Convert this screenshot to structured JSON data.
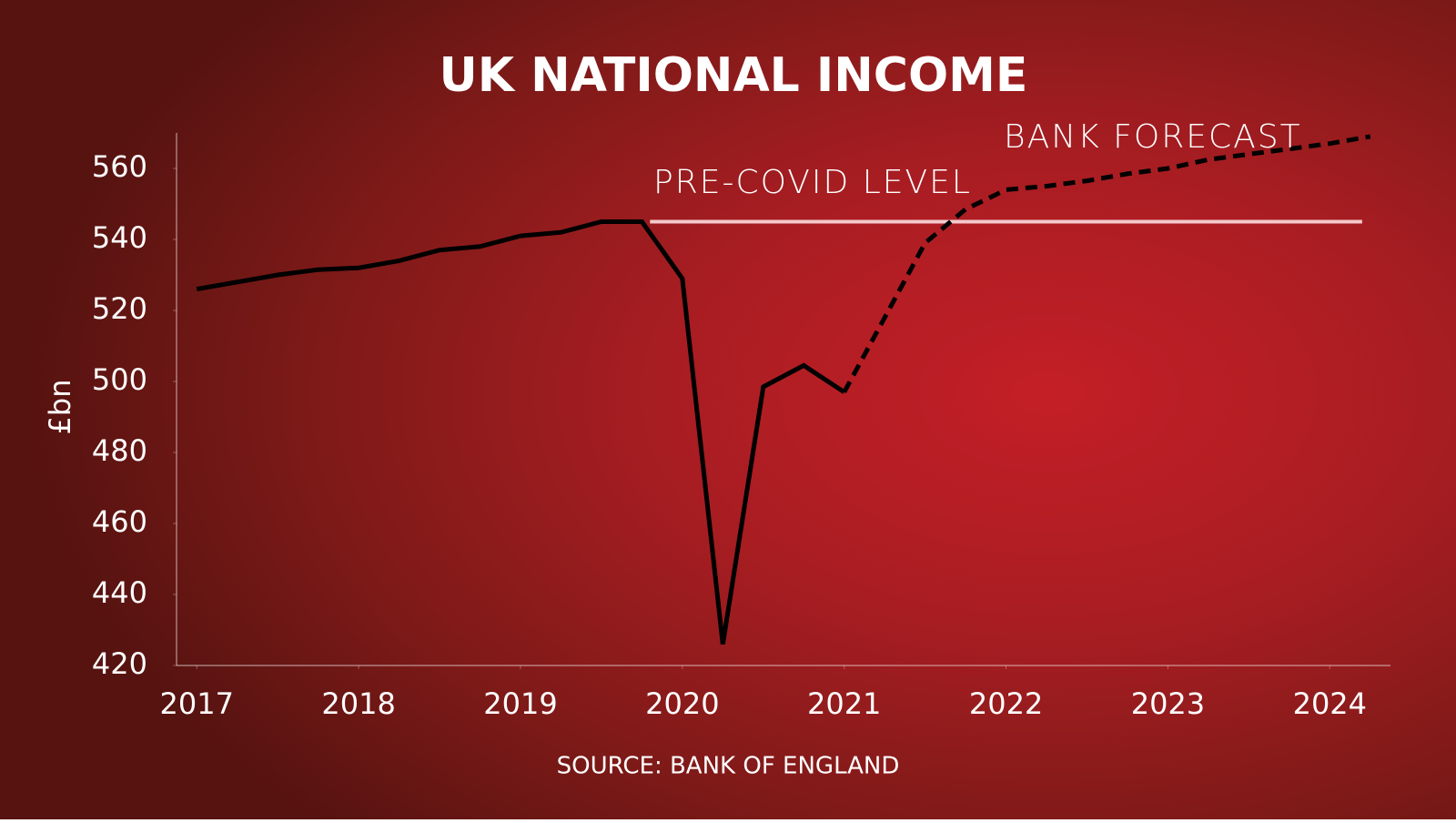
{
  "chart_data": {
    "type": "line",
    "title": "UK NATIONAL INCOME",
    "y_label": "£bn",
    "source": "SOURCE: BANK OF ENGLAND",
    "x": [
      2017,
      2017.25,
      2017.5,
      2017.75,
      2018,
      2018.25,
      2018.5,
      2018.75,
      2019,
      2019.25,
      2019.5,
      2019.75,
      2020,
      2020.25,
      2020.5,
      2020.75,
      2021,
      2021.25,
      2021.5,
      2021.75,
      2022,
      2022.25,
      2022.5,
      2022.75,
      2023,
      2023.25,
      2023.5,
      2023.75,
      2024,
      2024.25
    ],
    "series": [
      {
        "color": "#000000",
        "dashed": false,
        "values": [
          526,
          528,
          530,
          531.5,
          532,
          534,
          537,
          538,
          541,
          542,
          545,
          545,
          529,
          426,
          498.5,
          504.5,
          497,
          null,
          null,
          null,
          null,
          null,
          null,
          null,
          null,
          null,
          null,
          null,
          null,
          null
        ]
      },
      {
        "name": "BANK FORECAST",
        "color": "#000000",
        "dashed": true,
        "values": [
          null,
          null,
          null,
          null,
          null,
          null,
          null,
          null,
          null,
          null,
          null,
          null,
          null,
          null,
          null,
          null,
          497,
          518,
          539,
          548.5,
          554,
          555,
          556.5,
          558.5,
          560,
          562.5,
          564,
          565.5,
          567,
          569
        ]
      }
    ],
    "reference_line": {
      "value": 545,
      "x_range": [
        2019.8,
        2024.2
      ],
      "label": "PRE-COVID LEVEL",
      "color": "#f4c9cc"
    },
    "xlim": [
      2016.875,
      2024.375
    ],
    "xticks": [
      2017,
      2018,
      2019,
      2020,
      2021,
      2022,
      2023,
      2024
    ],
    "ylim": [
      420,
      570
    ],
    "yticks": [
      420,
      440,
      460,
      480,
      500,
      520,
      540,
      560
    ]
  }
}
